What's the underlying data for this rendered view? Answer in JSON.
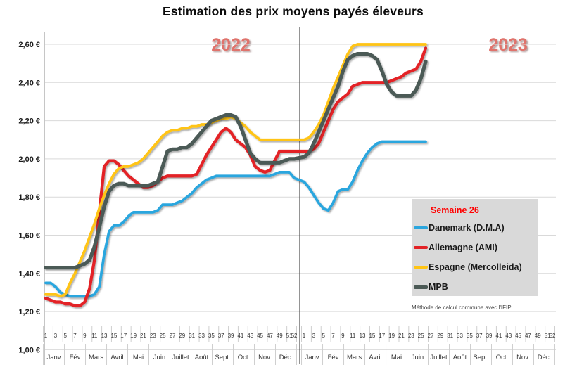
{
  "chart_data": {
    "type": "line",
    "title": "Estimation des prix moyens payés éleveurs",
    "note": "Méthode de calcul commune avec l'IFIP",
    "legend": {
      "annotation": "Semaine 26"
    },
    "y_axis": {
      "min": 1.0,
      "max": 2.6,
      "step": 0.2,
      "unit": "€",
      "labels": [
        "1,00 €",
        "1,20 €",
        "1,40 €",
        "1,60 €",
        "1,80 €",
        "2,00 €",
        "2,20 €",
        "2,40 €",
        "2,60 €"
      ]
    },
    "x_axis": {
      "years": [
        "2022",
        "2023"
      ],
      "weeks_per_year": 52,
      "week_labels": [
        1,
        3,
        5,
        7,
        9,
        11,
        13,
        15,
        17,
        19,
        21,
        23,
        25,
        27,
        29,
        31,
        33,
        35,
        37,
        39,
        41,
        43,
        45,
        47,
        49,
        51,
        52
      ],
      "months": [
        "Janv",
        "Fév",
        "Mars",
        "Avril",
        "Mai",
        "Juin",
        "Juillet",
        "Août",
        "Sept.",
        "Oct.",
        "Nov.",
        "Déc."
      ]
    },
    "grid_color": "#d9d9d9",
    "series": [
      {
        "id": "danemark",
        "name": "Danemark (D.M.A)",
        "color": "#2ba6de",
        "width": 3.8,
        "values": [
          1.35,
          1.35,
          1.33,
          1.3,
          1.29,
          1.28,
          1.28,
          1.28,
          1.28,
          1.28,
          1.29,
          1.33,
          1.5,
          1.62,
          1.65,
          1.65,
          1.67,
          1.7,
          1.72,
          1.72,
          1.72,
          1.72,
          1.72,
          1.73,
          1.76,
          1.76,
          1.76,
          1.77,
          1.78,
          1.8,
          1.82,
          1.85,
          1.87,
          1.89,
          1.9,
          1.91,
          1.91,
          1.91,
          1.91,
          1.91,
          1.91,
          1.91,
          1.91,
          1.91,
          1.91,
          1.91,
          1.91,
          1.92,
          1.93,
          1.93,
          1.93,
          1.9,
          1.88,
          1.85,
          1.81,
          1.77,
          1.74,
          1.73,
          1.77,
          1.83,
          1.84,
          1.84,
          1.88,
          1.94,
          1.99,
          2.03,
          2.06,
          2.08,
          2.09,
          2.09,
          2.09,
          2.09,
          2.09,
          2.09,
          2.09,
          2.09,
          2.09,
          2.09
        ]
      },
      {
        "id": "allemagne",
        "name": "Allemagne (AMI)",
        "color": "#e32226",
        "width": 4.3,
        "values": [
          1.27,
          1.26,
          1.25,
          1.25,
          1.24,
          1.24,
          1.23,
          1.23,
          1.25,
          1.32,
          1.47,
          1.72,
          1.96,
          1.99,
          1.99,
          1.97,
          1.94,
          1.91,
          1.89,
          1.87,
          1.85,
          1.85,
          1.86,
          1.88,
          1.9,
          1.91,
          1.91,
          1.91,
          1.91,
          1.91,
          1.91,
          1.92,
          1.97,
          2.02,
          2.06,
          2.1,
          2.14,
          2.16,
          2.14,
          2.1,
          2.08,
          2.06,
          2.02,
          1.96,
          1.94,
          1.93,
          1.94,
          1.99,
          2.04,
          2.04,
          2.04,
          2.04,
          2.04,
          2.04,
          2.05,
          2.08,
          2.14,
          2.2,
          2.26,
          2.3,
          2.32,
          2.34,
          2.38,
          2.39,
          2.4,
          2.4,
          2.4,
          2.4,
          2.4,
          2.4,
          2.41,
          2.42,
          2.43,
          2.45,
          2.46,
          2.47,
          2.51,
          2.58
        ]
      },
      {
        "id": "espagne",
        "name": "Espagne (Mercolleida)",
        "color": "#ffc414",
        "width": 3.8,
        "values": [
          1.29,
          1.29,
          1.29,
          1.28,
          1.29,
          1.35,
          1.4,
          1.46,
          1.52,
          1.59,
          1.66,
          1.74,
          1.81,
          1.87,
          1.92,
          1.95,
          1.96,
          1.96,
          1.97,
          1.98,
          2.0,
          2.03,
          2.06,
          2.09,
          2.12,
          2.14,
          2.15,
          2.15,
          2.16,
          2.16,
          2.17,
          2.17,
          2.18,
          2.18,
          2.19,
          2.2,
          2.21,
          2.21,
          2.22,
          2.21,
          2.19,
          2.17,
          2.14,
          2.12,
          2.1,
          2.1,
          2.1,
          2.1,
          2.1,
          2.1,
          2.1,
          2.1,
          2.1,
          2.11,
          2.14,
          2.18,
          2.23,
          2.3,
          2.37,
          2.43,
          2.49,
          2.55,
          2.59,
          2.6,
          2.6,
          2.6,
          2.6,
          2.6,
          2.6,
          2.6,
          2.6,
          2.6,
          2.6,
          2.6,
          2.6,
          2.6,
          2.6,
          2.6
        ]
      },
      {
        "id": "mpb",
        "name": "MPB",
        "color": "#4c5a56",
        "width": 5.2,
        "values": [
          1.43,
          1.43,
          1.43,
          1.43,
          1.43,
          1.43,
          1.43,
          1.44,
          1.45,
          1.47,
          1.54,
          1.64,
          1.75,
          1.83,
          1.86,
          1.87,
          1.87,
          1.86,
          1.86,
          1.86,
          1.86,
          1.86,
          1.87,
          1.88,
          1.96,
          2.04,
          2.05,
          2.05,
          2.06,
          2.06,
          2.08,
          2.11,
          2.14,
          2.17,
          2.2,
          2.21,
          2.22,
          2.23,
          2.23,
          2.22,
          2.17,
          2.1,
          2.03,
          2.0,
          1.98,
          1.98,
          1.98,
          1.98,
          1.98,
          1.99,
          2.0,
          2.0,
          2.01,
          2.03,
          2.08,
          2.14,
          2.2,
          2.26,
          2.32,
          2.38,
          2.46,
          2.52,
          2.54,
          2.55,
          2.55,
          2.55,
          2.54,
          2.52,
          2.46,
          2.39,
          2.35,
          2.33,
          2.33,
          2.33,
          2.33,
          2.36,
          2.42,
          2.51
        ]
      }
    ]
  }
}
